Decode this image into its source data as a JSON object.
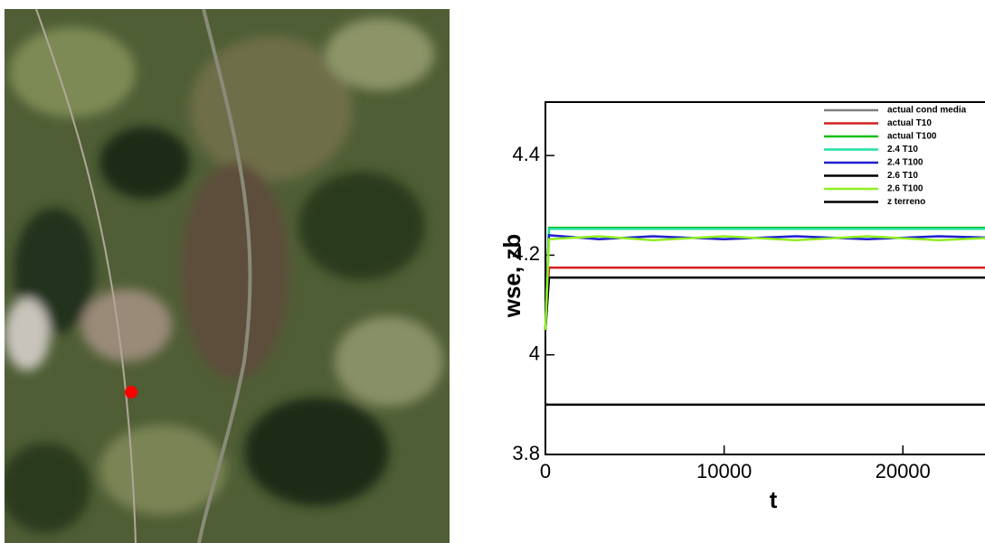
{
  "chart_data": {
    "type": "line",
    "x_label": "t",
    "y_label": "wse, zb",
    "x": [
      0,
      200,
      3000,
      6000,
      10000,
      14000,
      18000,
      22000,
      25000
    ],
    "series": [
      {
        "name": "actual cond media",
        "color": "#808080",
        "values": [
          4.05,
          4.155,
          4.155,
          4.155,
          4.155,
          4.155,
          4.155,
          4.155,
          4.155
        ]
      },
      {
        "name": "actual T10",
        "color": "#d42020",
        "values": [
          4.05,
          4.175,
          4.175,
          4.175,
          4.175,
          4.175,
          4.175,
          4.175,
          4.175
        ]
      },
      {
        "name": "actual T100",
        "color": "#10c010",
        "values": [
          4.05,
          4.255,
          4.255,
          4.255,
          4.255,
          4.255,
          4.255,
          4.255,
          4.255
        ]
      },
      {
        "name": "2.4 T10",
        "color": "#20e0a0",
        "values": [
          4.05,
          4.253,
          4.253,
          4.253,
          4.253,
          4.253,
          4.253,
          4.253,
          4.253
        ]
      },
      {
        "name": "2.4 T100",
        "color": "#2020d0",
        "values": [
          4.05,
          4.24,
          4.232,
          4.238,
          4.232,
          4.238,
          4.232,
          4.238,
          4.235
        ]
      },
      {
        "name": "2.6 T10",
        "color": "#000000",
        "values": [
          4.05,
          4.155,
          4.155,
          4.155,
          4.155,
          4.155,
          4.155,
          4.155,
          4.155
        ]
      },
      {
        "name": "2.6 T100",
        "color": "#90f020",
        "values": [
          4.05,
          4.232,
          4.238,
          4.23,
          4.238,
          4.23,
          4.238,
          4.23,
          4.235
        ]
      },
      {
        "name": "z terreno",
        "color": "#000000",
        "values": [
          3.9,
          3.9,
          3.9,
          3.9,
          3.9,
          3.9,
          3.9,
          3.9,
          3.9
        ]
      }
    ],
    "xlim": [
      0,
      25000
    ],
    "xticks": [
      0,
      10000,
      20000
    ],
    "ylim": [
      3.8,
      4.5
    ],
    "yticks": [
      3.8,
      4,
      4.2,
      4.4
    ],
    "legend": "upper right"
  }
}
